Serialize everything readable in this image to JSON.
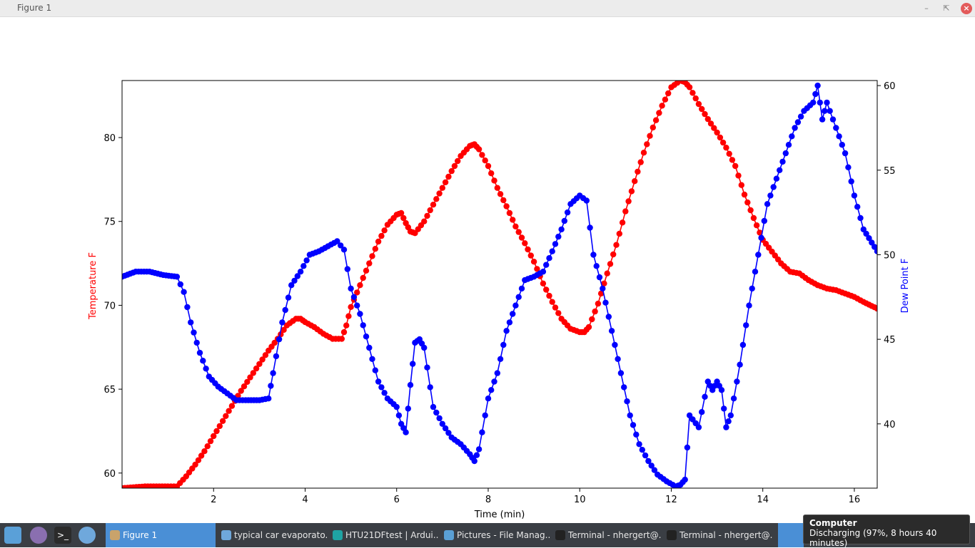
{
  "window": {
    "title": "Figure 1"
  },
  "colors": {
    "temperature": "#ff0000",
    "dew_point": "#0000ff",
    "taskbar": "#3a3e44",
    "active_task": "#4a8fd6"
  },
  "chart_data": {
    "type": "line",
    "xlabel": "Time (min)",
    "ylabel_left": "Temperature F",
    "ylabel_right": "Dew Point F",
    "xlim": [
      0.0,
      16.5
    ],
    "ylim_left": [
      59.1,
      83.4
    ],
    "ylim_right": [
      36.2,
      60.3
    ],
    "x_ticks": [
      2,
      4,
      6,
      8,
      10,
      12,
      14,
      16
    ],
    "y_ticks_left": [
      60,
      65,
      70,
      75,
      80
    ],
    "y_ticks_right": [
      40,
      45,
      50,
      55,
      60
    ],
    "grid": false,
    "marker": "circle",
    "series": [
      {
        "name": "Temperature F",
        "axis": "left",
        "color": "#ff0000",
        "x": [
          0.0,
          0.5,
          1.0,
          1.2,
          1.4,
          1.6,
          1.8,
          2.0,
          2.2,
          2.4,
          2.6,
          2.8,
          3.0,
          3.2,
          3.4,
          3.6,
          3.8,
          3.9,
          4.0,
          4.2,
          4.4,
          4.6,
          4.8,
          4.9,
          5.0,
          5.2,
          5.4,
          5.6,
          5.8,
          6.0,
          6.1,
          6.2,
          6.3,
          6.4,
          6.6,
          6.8,
          7.0,
          7.2,
          7.4,
          7.6,
          7.7,
          7.8,
          8.0,
          8.2,
          8.4,
          8.6,
          8.8,
          9.0,
          9.2,
          9.4,
          9.6,
          9.8,
          10.0,
          10.1,
          10.2,
          10.4,
          10.6,
          10.8,
          11.0,
          11.2,
          11.4,
          11.6,
          11.8,
          12.0,
          12.2,
          12.3,
          12.4,
          12.6,
          12.8,
          13.0,
          13.2,
          13.4,
          13.6,
          13.8,
          14.0,
          14.2,
          14.4,
          14.6,
          14.8,
          15.0,
          15.2,
          15.4,
          15.6,
          15.8,
          16.0,
          16.2,
          16.5
        ],
        "values": [
          59.1,
          59.2,
          59.2,
          59.2,
          59.8,
          60.5,
          61.3,
          62.2,
          63.1,
          64.0,
          64.9,
          65.7,
          66.5,
          67.3,
          68.0,
          68.8,
          69.2,
          69.2,
          69.0,
          68.7,
          68.3,
          68.0,
          68.0,
          68.8,
          69.9,
          71.2,
          72.5,
          73.8,
          74.8,
          75.4,
          75.5,
          74.9,
          74.4,
          74.3,
          75.0,
          76.0,
          77.0,
          78.0,
          78.9,
          79.5,
          79.6,
          79.3,
          78.3,
          77.0,
          75.9,
          74.7,
          73.7,
          72.6,
          71.3,
          70.2,
          69.2,
          68.6,
          68.4,
          68.4,
          68.7,
          70.1,
          71.9,
          73.6,
          75.6,
          77.4,
          79.1,
          80.6,
          81.9,
          83.0,
          83.4,
          83.3,
          83.0,
          82.0,
          81.1,
          80.3,
          79.4,
          78.3,
          76.6,
          75.2,
          73.9,
          73.2,
          72.5,
          72.0,
          71.9,
          71.5,
          71.2,
          71.0,
          70.9,
          70.7,
          70.5,
          70.2,
          69.8
        ]
      },
      {
        "name": "Dew Point F",
        "axis": "right",
        "color": "#0000ff",
        "x": [
          0.0,
          0.3,
          0.6,
          0.9,
          1.2,
          1.35,
          1.5,
          1.7,
          1.9,
          2.1,
          2.3,
          2.5,
          2.7,
          3.0,
          3.2,
          3.3,
          3.5,
          3.7,
          3.9,
          4.1,
          4.3,
          4.5,
          4.7,
          4.85,
          5.0,
          5.2,
          5.4,
          5.6,
          5.8,
          6.0,
          6.1,
          6.2,
          6.3,
          6.4,
          6.5,
          6.6,
          6.8,
          7.0,
          7.2,
          7.4,
          7.6,
          7.7,
          7.8,
          8.0,
          8.2,
          8.4,
          8.6,
          8.8,
          9.0,
          9.2,
          9.4,
          9.6,
          9.8,
          10.0,
          10.15,
          10.3,
          10.5,
          10.7,
          10.9,
          11.1,
          11.3,
          11.5,
          11.7,
          11.9,
          12.1,
          12.2,
          12.3,
          12.4,
          12.6,
          12.8,
          12.9,
          13.0,
          13.1,
          13.2,
          13.3,
          13.5,
          13.7,
          13.9,
          14.1,
          14.3,
          14.5,
          14.7,
          14.9,
          15.1,
          15.2,
          15.3,
          15.4,
          15.6,
          15.8,
          16.0,
          16.2,
          16.5
        ],
        "values": [
          48.7,
          49.0,
          49.0,
          48.8,
          48.7,
          47.8,
          46.0,
          44.2,
          42.8,
          42.2,
          41.8,
          41.4,
          41.4,
          41.4,
          41.5,
          43.0,
          46.0,
          48.2,
          49.0,
          50.0,
          50.2,
          50.5,
          50.8,
          50.3,
          48.0,
          46.5,
          44.5,
          42.5,
          41.5,
          41.0,
          40.0,
          39.5,
          42.3,
          44.8,
          45.0,
          44.5,
          41.0,
          40.0,
          39.2,
          38.8,
          38.2,
          37.8,
          38.5,
          41.5,
          43.0,
          45.5,
          47.0,
          48.5,
          48.7,
          49.0,
          50.2,
          51.5,
          53.0,
          53.5,
          53.2,
          50.0,
          48.0,
          45.5,
          43.0,
          40.5,
          38.8,
          37.8,
          37.0,
          36.6,
          36.3,
          36.4,
          36.7,
          40.5,
          39.8,
          42.5,
          42.0,
          42.5,
          42.0,
          39.8,
          40.5,
          43.5,
          47.0,
          50.0,
          53.0,
          54.5,
          56.0,
          57.5,
          58.5,
          59.0,
          60.0,
          58.0,
          59.0,
          57.5,
          56.0,
          53.5,
          51.5,
          50.2
        ]
      }
    ]
  },
  "taskbar": {
    "launchers": [
      "whisker-menu-icon",
      "screenshot-icon",
      "terminal-icon",
      "chromium-icon"
    ],
    "tasks": [
      {
        "label": "Figure 1",
        "icon": "figure-icon",
        "active": true
      },
      {
        "label": "typical car evaporato...",
        "icon": "chromium-icon",
        "active": false
      },
      {
        "label": "HTU21DFtest | Ardui...",
        "icon": "arduino-icon",
        "active": false
      },
      {
        "label": "Pictures - File Manag...",
        "icon": "folder-icon",
        "active": false
      },
      {
        "label": "Terminal - nhergert@...",
        "icon": "terminal-icon",
        "active": false
      },
      {
        "label": "Terminal - nhergert@...",
        "icon": "terminal-icon",
        "active": false
      }
    ]
  },
  "tooltip": {
    "title": "Computer",
    "text": "Discharging (97%, 8 hours 40 minutes)"
  }
}
